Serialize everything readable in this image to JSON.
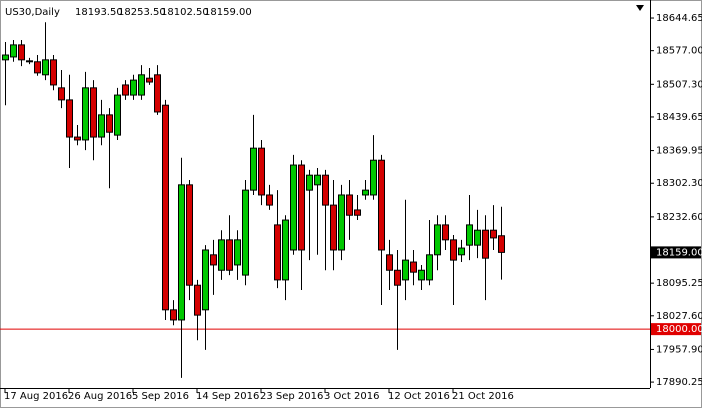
{
  "chart_data": {
    "type": "candlestick",
    "title": "US30,Daily",
    "last_ohlc_labels": [
      "18193.50",
      "18253.50",
      "18102.50",
      "18159.00"
    ],
    "categories": [
      "17 Aug 2016",
      null,
      null,
      null,
      null,
      null,
      null,
      null,
      "26 Aug 2016",
      null,
      null,
      null,
      null,
      null,
      null,
      null,
      "5 Sep 2016",
      null,
      null,
      null,
      null,
      null,
      null,
      null,
      "14 Sep 2016",
      null,
      null,
      null,
      null,
      null,
      null,
      null,
      "23 Sep 2016",
      null,
      null,
      null,
      null,
      null,
      null,
      null,
      "3 Oct 2016",
      null,
      null,
      null,
      null,
      null,
      null,
      null,
      "12 Oct 2016",
      null,
      null,
      null,
      null,
      null,
      null,
      null,
      "21 Oct 2016",
      null,
      null,
      null,
      null,
      null,
      null
    ],
    "open": [
      18558,
      18564,
      18589,
      18554,
      18554,
      18527,
      18558,
      18500,
      18475,
      18398,
      18392,
      18500,
      18398,
      18444,
      18402,
      18506,
      18485,
      18485,
      18520,
      18527,
      18464,
      18040,
      18019,
      18299,
      18091,
      18040,
      18154,
      18122,
      18185,
      18133,
      18112,
      18288,
      18375,
      18278,
      18216,
      18102,
      18164,
      18340,
      18288,
      18299,
      18319,
      18257,
      18164,
      18278,
      18247,
      18278,
      18278,
      18350,
      18154,
      18122,
      18102,
      18139,
      18102,
      18102,
      18154,
      18216,
      18185,
      18154,
      18174,
      18174,
      18205,
      18205,
      18193.5
    ],
    "high": [
      18595,
      18599,
      18599,
      18562,
      18568,
      18636,
      18568,
      18537,
      18527,
      18423,
      18533,
      18516,
      18475,
      18458,
      18500,
      18516,
      18527,
      18547,
      18541,
      18547,
      18475,
      18060,
      18355,
      18309,
      18102,
      18174,
      18185,
      18205,
      18236,
      18205,
      18309,
      18444,
      18392,
      18299,
      18288,
      18236,
      18361,
      18350,
      18330,
      18334,
      18330,
      18309,
      18299,
      18309,
      18278,
      18309,
      18402,
      18361,
      18185,
      18164,
      18268,
      18164,
      18133,
      18226,
      18236,
      18236,
      18195,
      18185,
      18278,
      18247,
      18236,
      18257,
      18253.5
    ],
    "low": [
      18464,
      18554,
      18545,
      18549,
      18525,
      18516,
      18495,
      18458,
      18334,
      18381,
      18371,
      18350,
      18381,
      18292,
      18392,
      18475,
      18475,
      18475,
      18506,
      18444,
      18019,
      18008,
      17899,
      18060,
      17977,
      17957,
      18071,
      18102,
      18112,
      18102,
      18091,
      18278,
      18257,
      18247,
      18085,
      18060,
      18154,
      18081,
      18143,
      18154,
      18122,
      18122,
      18143,
      18185,
      18226,
      18268,
      18268,
      18050,
      18081,
      17957,
      18060,
      18091,
      18081,
      18091,
      18122,
      18164,
      18050,
      18139,
      18143,
      18147,
      18060,
      18164,
      18102.5
    ],
    "close": [
      18568,
      18589,
      18558,
      18556,
      18531,
      18558,
      18506,
      18475,
      18398,
      18392,
      18500,
      18398,
      18444,
      18408,
      18485,
      18485,
      18516,
      18527,
      18512,
      18450,
      18040,
      18019,
      18299,
      18091,
      18029,
      18164,
      18133,
      18185,
      18122,
      18185,
      18288,
      18375,
      18278,
      18257,
      18102,
      18226,
      18340,
      18164,
      18319,
      18319,
      18257,
      18164,
      18278,
      18236,
      18236,
      18288,
      18350,
      18164,
      18122,
      18091,
      18143,
      18118,
      18122,
      18154,
      18216,
      18185,
      18143,
      18168,
      18216,
      18205,
      18147,
      18189,
      18159
    ],
    "up_color": "#00c800",
    "down_color": "#d40000",
    "ylim": [
      17878,
      18682
    ],
    "yticks": [
      18644.65,
      {
        "value": 18577,
        "label": "18577.00"
      },
      {
        "value": 18507.3,
        "label": "18507.30"
      },
      18439.65,
      18369.95,
      {
        "value": 18302.3,
        "label": "18302.30"
      },
      {
        "value": 18232.6,
        "label": "18232.60"
      },
      18095.25,
      {
        "value": 18027.6,
        "label": "18027.60"
      },
      {
        "value": 17957.9,
        "label": "17957.90"
      },
      17890.25
    ],
    "current_price": {
      "value": 18159,
      "label": "18159.00"
    },
    "hline": {
      "value": 18000,
      "label": "18000.00",
      "color": "#e00000"
    }
  }
}
